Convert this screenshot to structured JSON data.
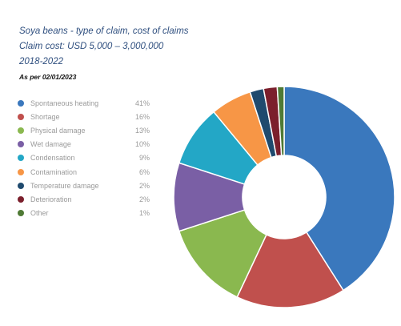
{
  "header": {
    "title_line1": "Soya beans - type of claim, cost of claims",
    "title_line2": "Claim cost: USD 5,000 – 3,000,000",
    "title_line3": "2018-2022",
    "as_of": "As per 02/01/2023"
  },
  "chart_data": {
    "type": "pie",
    "donut": true,
    "legend_position": "left",
    "categories": [
      "Spontaneous heating",
      "Shortage",
      "Physical damage",
      "Wet damage",
      "Condensation",
      "Contamination",
      "Temperature damage",
      "Deterioration",
      "Other"
    ],
    "values": [
      41,
      16,
      13,
      10,
      9,
      6,
      2,
      2,
      1
    ],
    "value_labels": [
      "41%",
      "16%",
      "13%",
      "10%",
      "9%",
      "6%",
      "2%",
      "2%",
      "1%"
    ],
    "colors": [
      "#3a78bd",
      "#c0504d",
      "#8ab84f",
      "#7a5fa5",
      "#23a7c6",
      "#f79646",
      "#1f4a6e",
      "#7b1f2c",
      "#4f7a35"
    ]
  }
}
